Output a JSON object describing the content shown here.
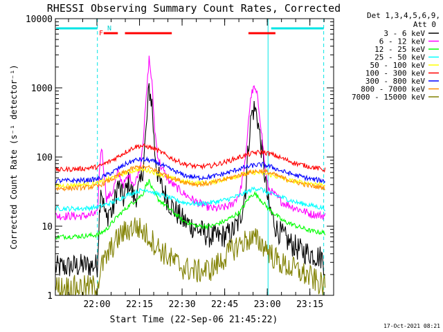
{
  "chart_data": {
    "type": "line",
    "title": "RHESSI Observing Summary Count Rates, Corrected",
    "xlabel": "Start Time (22-Sep-06 21:45:22)",
    "ylabel": "Corrected Count Rate (s⁻¹ detector⁻¹)",
    "yscale": "log",
    "ylim": [
      1,
      10000
    ],
    "xlim_minutes_after_start": [
      0,
      98
    ],
    "x_tick_labels": [
      "22:00",
      "22:15",
      "22:30",
      "22:45",
      "23:00",
      "23:15"
    ],
    "x_tick_minutes_after_start": [
      14.63,
      29.63,
      44.63,
      59.63,
      74.63,
      89.63
    ],
    "y_tick_labels": [
      "1",
      "10",
      "100",
      "1000",
      "10000"
    ],
    "y_tick_values": [
      1,
      10,
      100,
      1000,
      10000
    ],
    "legend_header": [
      "Det 1,3,4,5,6,9,",
      "Att 0"
    ],
    "legend_position": "right",
    "footer": "17-Oct-2021 08:21",
    "flags": [
      {
        "label": "F",
        "color": "#ff0000"
      },
      {
        "label": "N",
        "color": "#00e5e5"
      }
    ],
    "night_marks_minutes": [
      0,
      14.8,
      74.9,
      94.5
    ],
    "series": [
      {
        "name": "3 - 6 keV",
        "color": "#000000",
        "points": [
          [
            0,
            2.5
          ],
          [
            5,
            2.6
          ],
          [
            10,
            2.7
          ],
          [
            14.8,
            2.7
          ],
          [
            15.2,
            8
          ],
          [
            16,
            40
          ],
          [
            17,
            20
          ],
          [
            18,
            12
          ],
          [
            19,
            18
          ],
          [
            20,
            15
          ],
          [
            22,
            40
          ],
          [
            24,
            25
          ],
          [
            26,
            45
          ],
          [
            27,
            30
          ],
          [
            28,
            25
          ],
          [
            30,
            40
          ],
          [
            31,
            80
          ],
          [
            32,
            250
          ],
          [
            33,
            1000
          ],
          [
            34,
            600
          ],
          [
            35,
            120
          ],
          [
            36,
            60
          ],
          [
            37,
            40
          ],
          [
            40,
            22
          ],
          [
            45,
            12
          ],
          [
            50,
            9
          ],
          [
            55,
            7
          ],
          [
            58,
            7
          ],
          [
            62,
            8
          ],
          [
            65,
            12
          ],
          [
            67,
            35
          ],
          [
            68,
            150
          ],
          [
            69,
            400
          ],
          [
            70,
            500
          ],
          [
            71,
            420
          ],
          [
            72,
            200
          ],
          [
            73,
            100
          ],
          [
            74,
            45
          ],
          [
            75,
            20
          ],
          [
            78,
            9
          ],
          [
            82,
            6
          ],
          [
            86,
            4.5
          ],
          [
            90,
            4
          ],
          [
            94,
            3.5
          ],
          [
            95,
            2.5
          ]
        ]
      },
      {
        "name": "6 - 12 keV",
        "color": "#ff00ff",
        "points": [
          [
            0,
            14
          ],
          [
            10,
            14
          ],
          [
            14.8,
            15
          ],
          [
            15.5,
            60
          ],
          [
            16.2,
            150
          ],
          [
            17,
            70
          ],
          [
            18,
            25
          ],
          [
            20,
            30
          ],
          [
            22,
            60
          ],
          [
            24,
            40
          ],
          [
            26,
            55
          ],
          [
            27,
            45
          ],
          [
            28,
            40
          ],
          [
            30,
            80
          ],
          [
            31,
            200
          ],
          [
            32,
            700
          ],
          [
            33,
            2700
          ],
          [
            34,
            1200
          ],
          [
            35,
            250
          ],
          [
            36,
            110
          ],
          [
            37,
            75
          ],
          [
            40,
            45
          ],
          [
            45,
            30
          ],
          [
            50,
            22
          ],
          [
            55,
            18
          ],
          [
            58,
            18
          ],
          [
            62,
            20
          ],
          [
            65,
            30
          ],
          [
            67,
            90
          ],
          [
            68,
            350
          ],
          [
            69,
            800
          ],
          [
            70,
            1000
          ],
          [
            71,
            800
          ],
          [
            72,
            400
          ],
          [
            73,
            160
          ],
          [
            74,
            60
          ],
          [
            75,
            35
          ],
          [
            80,
            22
          ],
          [
            85,
            18
          ],
          [
            90,
            15
          ],
          [
            95,
            14
          ]
        ]
      },
      {
        "name": "12 - 25 keV",
        "color": "#00ff00",
        "points": [
          [
            0,
            7
          ],
          [
            10,
            7.2
          ],
          [
            15,
            7.5
          ],
          [
            18,
            9
          ],
          [
            22,
            14
          ],
          [
            26,
            20
          ],
          [
            29,
            25
          ],
          [
            31,
            30
          ],
          [
            32,
            40
          ],
          [
            33,
            45
          ],
          [
            34,
            35
          ],
          [
            36,
            25
          ],
          [
            40,
            18
          ],
          [
            45,
            12
          ],
          [
            50,
            10
          ],
          [
            55,
            10
          ],
          [
            60,
            12
          ],
          [
            65,
            16
          ],
          [
            68,
            25
          ],
          [
            70,
            30
          ],
          [
            72,
            25
          ],
          [
            75,
            18
          ],
          [
            80,
            12
          ],
          [
            85,
            10
          ],
          [
            90,
            8.5
          ],
          [
            95,
            8
          ]
        ]
      },
      {
        "name": "25 - 50 keV",
        "color": "#00ffff",
        "points": [
          [
            0,
            18
          ],
          [
            10,
            18
          ],
          [
            15,
            19
          ],
          [
            20,
            22
          ],
          [
            25,
            28
          ],
          [
            29,
            32
          ],
          [
            32,
            34
          ],
          [
            35,
            30
          ],
          [
            40,
            26
          ],
          [
            45,
            22
          ],
          [
            50,
            21
          ],
          [
            55,
            22
          ],
          [
            60,
            24
          ],
          [
            65,
            28
          ],
          [
            70,
            35
          ],
          [
            72,
            35
          ],
          [
            75,
            30
          ],
          [
            80,
            26
          ],
          [
            85,
            22
          ],
          [
            90,
            20
          ],
          [
            95,
            18
          ]
        ]
      },
      {
        "name": "50 - 100 keV",
        "color": "#ffff00",
        "points": [
          [
            0,
            38
          ],
          [
            10,
            40
          ],
          [
            15,
            42
          ],
          [
            20,
            50
          ],
          [
            25,
            60
          ],
          [
            29,
            66
          ],
          [
            33,
            64
          ],
          [
            36,
            58
          ],
          [
            40,
            50
          ],
          [
            45,
            44
          ],
          [
            50,
            42
          ],
          [
            55,
            43
          ],
          [
            60,
            48
          ],
          [
            65,
            55
          ],
          [
            70,
            60
          ],
          [
            74,
            58
          ],
          [
            78,
            52
          ],
          [
            82,
            46
          ],
          [
            88,
            42
          ],
          [
            95,
            40
          ]
        ]
      },
      {
        "name": "100 - 300 keV",
        "color": "#ff0000",
        "points": [
          [
            0,
            65
          ],
          [
            10,
            68
          ],
          [
            15,
            72
          ],
          [
            20,
            90
          ],
          [
            25,
            120
          ],
          [
            28,
            140
          ],
          [
            30,
            145
          ],
          [
            33,
            140
          ],
          [
            36,
            125
          ],
          [
            40,
            100
          ],
          [
            45,
            80
          ],
          [
            50,
            72
          ],
          [
            55,
            75
          ],
          [
            60,
            85
          ],
          [
            65,
            100
          ],
          [
            70,
            115
          ],
          [
            73,
            118
          ],
          [
            76,
            110
          ],
          [
            80,
            95
          ],
          [
            85,
            80
          ],
          [
            90,
            72
          ],
          [
            95,
            65
          ]
        ]
      },
      {
        "name": "300 - 800 keV",
        "color": "#0000ff",
        "points": [
          [
            0,
            45
          ],
          [
            10,
            46
          ],
          [
            15,
            48
          ],
          [
            20,
            60
          ],
          [
            25,
            80
          ],
          [
            28,
            90
          ],
          [
            30,
            92
          ],
          [
            33,
            90
          ],
          [
            36,
            82
          ],
          [
            40,
            68
          ],
          [
            45,
            55
          ],
          [
            50,
            50
          ],
          [
            55,
            52
          ],
          [
            60,
            58
          ],
          [
            65,
            68
          ],
          [
            70,
            76
          ],
          [
            73,
            78
          ],
          [
            76,
            72
          ],
          [
            80,
            62
          ],
          [
            85,
            54
          ],
          [
            90,
            48
          ],
          [
            95,
            45
          ]
        ]
      },
      {
        "name": "800 - 7000 keV",
        "color": "#ff8c00",
        "points": [
          [
            0,
            35
          ],
          [
            10,
            36
          ],
          [
            15,
            38
          ],
          [
            20,
            48
          ],
          [
            25,
            62
          ],
          [
            28,
            70
          ],
          [
            30,
            72
          ],
          [
            33,
            70
          ],
          [
            36,
            62
          ],
          [
            40,
            52
          ],
          [
            45,
            44
          ],
          [
            50,
            40
          ],
          [
            55,
            42
          ],
          [
            60,
            48
          ],
          [
            65,
            55
          ],
          [
            70,
            62
          ],
          [
            73,
            63
          ],
          [
            76,
            58
          ],
          [
            80,
            50
          ],
          [
            85,
            43
          ],
          [
            90,
            38
          ],
          [
            95,
            36
          ]
        ]
      },
      {
        "name": "7000 - 15000 keV",
        "color": "#808000",
        "points": [
          [
            0,
            1.3
          ],
          [
            5,
            1.3
          ],
          [
            10,
            1.3
          ],
          [
            14.8,
            1.35
          ],
          [
            16,
            2.5
          ],
          [
            18,
            3.5
          ],
          [
            20,
            5
          ],
          [
            23,
            7.5
          ],
          [
            26,
            9
          ],
          [
            28,
            10
          ],
          [
            30,
            9
          ],
          [
            33,
            7
          ],
          [
            36,
            5
          ],
          [
            40,
            3.5
          ],
          [
            45,
            2.5
          ],
          [
            50,
            2.2
          ],
          [
            55,
            2.4
          ],
          [
            58,
            3
          ],
          [
            62,
            4.5
          ],
          [
            65,
            5.5
          ],
          [
            68,
            6.5
          ],
          [
            71,
            6.3
          ],
          [
            74,
            5
          ],
          [
            77,
            3.5
          ],
          [
            80,
            2.8
          ],
          [
            85,
            2.3
          ],
          [
            90,
            1.8
          ],
          [
            95,
            1.3
          ]
        ]
      }
    ]
  }
}
